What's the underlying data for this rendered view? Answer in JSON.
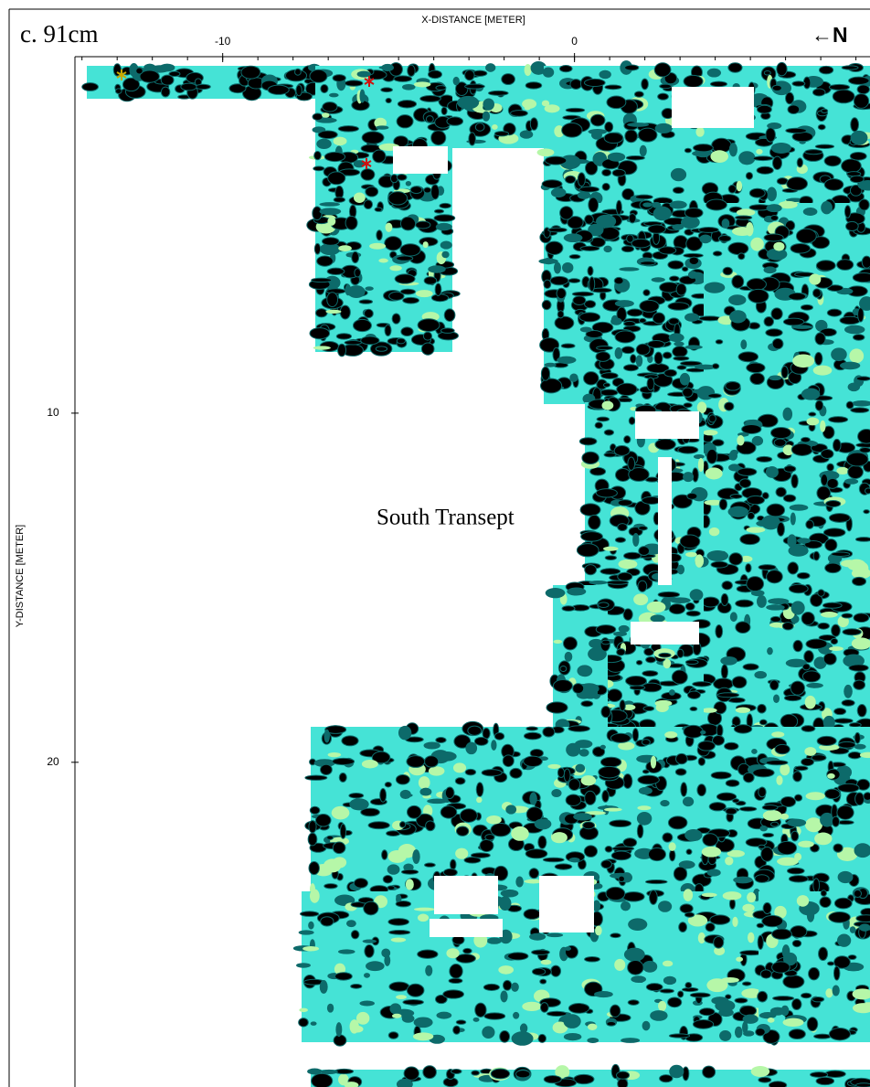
{
  "chart_data": {
    "type": "radar-slice",
    "title": "c. 91cm",
    "x_label": "X-DISTANCE [METER]",
    "y_label": "Y-DISTANCE [METER]",
    "north_label": "←N",
    "annotation": "South Transept",
    "xlim": [
      -14.2,
      8.4
    ],
    "xticks": [
      -10,
      0
    ],
    "ylim": [
      0,
      29.3
    ],
    "yticks": [
      10,
      20
    ]
  }
}
